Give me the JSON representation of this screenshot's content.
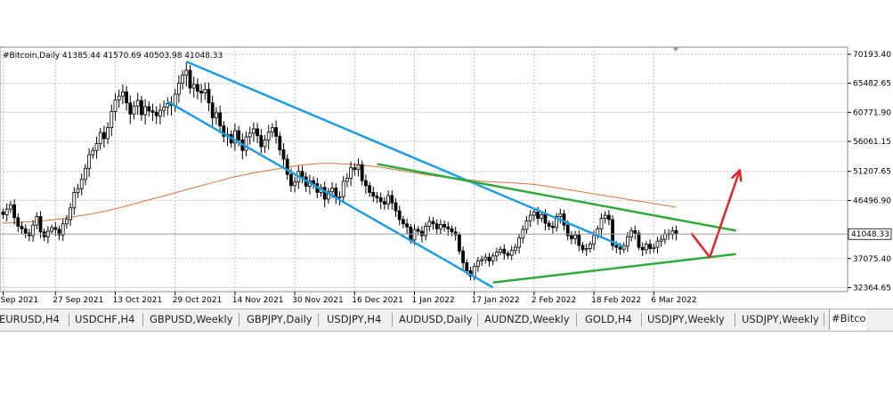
{
  "header": {
    "text": "#Bitcoin,Daily  41385.44 41570.69 40503.98 41048.33"
  },
  "chart_data": {
    "type": "candlestick",
    "symbol": "#Bitcoin",
    "timeframe": "Daily",
    "ohlc": {
      "open": 41385.44,
      "high": 41570.69,
      "low": 40503.98,
      "close": 41048.33
    },
    "ylim": [
      32364.65,
      70193.4
    ],
    "y_ticks": [
      {
        "label": "70193.40",
        "value": 70193.4
      },
      {
        "label": "65482.65",
        "value": 65482.65
      },
      {
        "label": "60771.90",
        "value": 60771.9
      },
      {
        "label": "56061.15",
        "value": 56061.15
      },
      {
        "label": "51207.65",
        "value": 51207.65
      },
      {
        "label": "46496.90",
        "value": 46496.9
      },
      {
        "label": "37075.40",
        "value": 37075.4
      },
      {
        "label": "32364.65",
        "value": 32364.65
      }
    ],
    "current_price": {
      "label": "41048.33",
      "value": 41048.33
    },
    "x_ticks": [
      "Sep 2021",
      "27 Sep 2021",
      "13 Oct 2021",
      "29 Oct 2021",
      "14 Nov 2021",
      "30 Nov 2021",
      "16 Dec 2021",
      "1 Jan 2022",
      "17 Jan 2022",
      "2 Feb 2022",
      "18 Feb 2022",
      "6 Mar 2022"
    ],
    "x_tick_index": [
      0,
      14,
      30,
      46,
      62,
      78,
      94,
      110,
      126,
      142,
      158,
      174
    ],
    "closes": [
      44200,
      45100,
      45800,
      43700,
      42300,
      41900,
      41200,
      40800,
      42500,
      43900,
      41400,
      40600,
      41500,
      42100,
      41800,
      40900,
      42700,
      43400,
      45300,
      47800,
      48400,
      49900,
      51700,
      53900,
      54600,
      55700,
      57500,
      56500,
      58300,
      60900,
      62800,
      63400,
      64100,
      62300,
      60500,
      61800,
      62700,
      60400,
      61700,
      61000,
      60800,
      60200,
      61100,
      61600,
      62200,
      61900,
      63700,
      65500,
      66800,
      67600,
      64700,
      65300,
      64200,
      63900,
      64500,
      62300,
      59900,
      60700,
      58600,
      56900,
      57200,
      55800,
      57800,
      56300,
      54600,
      56800,
      57400,
      58100,
      57000,
      55200,
      56300,
      57600,
      58300,
      56900,
      54700,
      53200,
      50700,
      48900,
      49500,
      51200,
      50300,
      48800,
      49700,
      49200,
      47800,
      48600,
      46700,
      47900,
      48500,
      46900,
      47100,
      49600,
      50100,
      51800,
      51500,
      52300,
      49700,
      48900,
      47800,
      47200,
      46900,
      46300,
      45900,
      47300,
      46100,
      44800,
      43400,
      42700,
      42200,
      40100,
      41800,
      41500,
      40800,
      42300,
      43100,
      42700,
      41900,
      42600,
      42200,
      41900,
      41400,
      40900,
      38300,
      36400,
      35100,
      34200,
      35800,
      36700,
      36900,
      37300,
      36700,
      37500,
      38100,
      38600,
      37900,
      37600,
      38400,
      38900,
      40400,
      41800,
      43200,
      44100,
      44600,
      43600,
      44200,
      42800,
      42300,
      42100,
      43900,
      44300,
      42500,
      40800,
      40300,
      40900,
      39200,
      38500,
      38700,
      39400,
      40800,
      41900,
      43600,
      44100,
      43400,
      39200,
      38900,
      38600,
      39100,
      40600,
      41600,
      41200,
      38900,
      38500,
      39400,
      38700,
      38900,
      39900,
      40200,
      41100,
      41000,
      41600,
      41048.33
    ],
    "ma_values": [
      42800,
      42900,
      43000,
      43100,
      43300,
      43500,
      43800,
      44100,
      44400,
      44800,
      45200,
      45700,
      46200,
      46700,
      47200,
      47700,
      48200,
      48700,
      49200,
      49700,
      50200,
      50600,
      51000,
      51300,
      51600,
      51900,
      52200,
      52400,
      52500,
      52500,
      52400,
      52300,
      52100,
      51900,
      51600,
      51300,
      51000,
      50700,
      50400,
      50200,
      50000,
      49800,
      49600,
      49500,
      49400,
      49300,
      49200,
      49000,
      48700,
      48400,
      48100,
      47800,
      47500,
      47200,
      46900,
      46600,
      46300,
      46000,
      45700,
      45400
    ],
    "annotations": [
      {
        "name": "descending-channel-upper",
        "color": "#1e9de0",
        "from": {
          "x": "2021-11-01",
          "y": 69000
        },
        "to": {
          "x": "2022-02-26",
          "y": 39000
        }
      },
      {
        "name": "descending-channel-lower",
        "color": "#1e9de0",
        "from": {
          "x": "2021-10-27",
          "y": 62500
        },
        "to": {
          "x": "2022-01-22",
          "y": 32400
        }
      },
      {
        "name": "triangle-resistance",
        "color": "#2eaa3e",
        "from": {
          "x": "2021-12-22",
          "y": 52400
        },
        "to": {
          "x": "2022-03-28",
          "y": 41600
        }
      },
      {
        "name": "triangle-support",
        "color": "#2eaa3e",
        "from": {
          "x": "2022-01-22",
          "y": 33200
        },
        "to": {
          "x": "2022-03-28",
          "y": 37800
        }
      },
      {
        "name": "projected-path",
        "color": "#e0262a",
        "points": [
          {
            "x": "2022-03-16",
            "y": 41200
          },
          {
            "x": "2022-03-21",
            "y": 37300
          },
          {
            "x": "2022-03-29",
            "y": 51400
          }
        ]
      }
    ]
  },
  "colors": {
    "candle": "#000000",
    "moving_average": "#d8743c",
    "blue_line": "#1e9de0",
    "green_line": "#2eaa3e",
    "red_arrow": "#e0262a",
    "grid": "#c0c0c0"
  },
  "tabs": [
    "EURUSD,H4",
    "USDCHF,H4",
    "GBPUSD,Weekly",
    "GBPJPY,Daily",
    "USDJPY,H4",
    "AUDUSD,Daily",
    "AUDNZD,Weekly",
    "GOLD,H4",
    "USDJPY,Weekly",
    "USDJPY,Weekly",
    "#Bitco"
  ],
  "active_tab": 10
}
